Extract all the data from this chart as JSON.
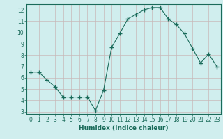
{
  "x": [
    0,
    1,
    2,
    3,
    4,
    5,
    6,
    7,
    8,
    9,
    10,
    11,
    12,
    13,
    14,
    15,
    16,
    17,
    18,
    19,
    20,
    21,
    22,
    23
  ],
  "y": [
    6.5,
    6.5,
    5.8,
    5.2,
    4.3,
    4.3,
    4.3,
    4.3,
    3.1,
    4.9,
    8.7,
    9.9,
    11.2,
    11.6,
    12.0,
    12.2,
    12.2,
    11.2,
    10.7,
    9.9,
    8.6,
    7.3,
    8.1,
    7.0
  ],
  "line_color": "#1a6b5a",
  "marker": "+",
  "marker_size": 4,
  "marker_lw": 1.0,
  "bg_color": "#d0eeee",
  "grid_color": "#c8b8b8",
  "xlabel": "Humidex (Indice chaleur)",
  "ylim": [
    2.8,
    12.5
  ],
  "xlim": [
    -0.5,
    23.5
  ],
  "yticks": [
    3,
    4,
    5,
    6,
    7,
    8,
    9,
    10,
    11,
    12
  ],
  "xticks": [
    0,
    1,
    2,
    3,
    4,
    5,
    6,
    7,
    8,
    9,
    10,
    11,
    12,
    13,
    14,
    15,
    16,
    17,
    18,
    19,
    20,
    21,
    22,
    23
  ],
  "xlabel_color": "#1a6b5a",
  "tick_color": "#1a6b5a",
  "axis_color": "#1a6b5a",
  "tick_labelsize": 5.5,
  "xlabel_fontsize": 6.5
}
